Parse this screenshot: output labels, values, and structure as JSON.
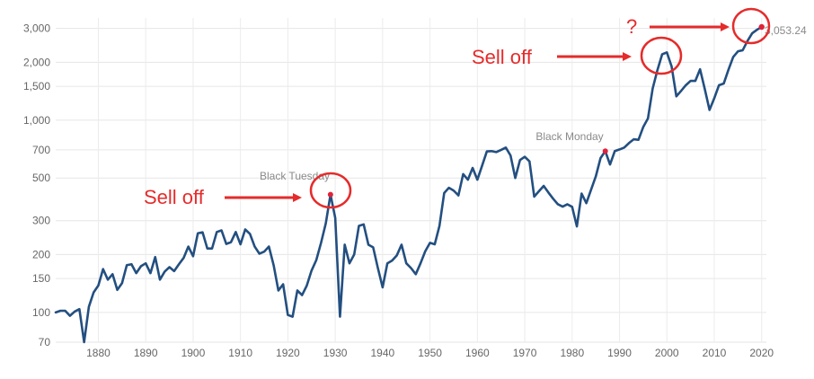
{
  "chart_data": {
    "type": "line",
    "y_scale": "log",
    "ylim": [
      70,
      3400
    ],
    "xlim": [
      1871,
      2021
    ],
    "grid": true,
    "x_ticks": [
      1880,
      1890,
      1900,
      1910,
      1920,
      1930,
      1940,
      1950,
      1960,
      1970,
      1980,
      1990,
      2000,
      2010,
      2020
    ],
    "y_ticks": [
      70,
      100,
      150,
      200,
      300,
      500,
      700,
      1000,
      1500,
      2000,
      3000
    ],
    "y_tick_labels": [
      "70",
      "100",
      "150",
      "200",
      "300",
      "500",
      "700",
      "1,000",
      "1,500",
      "2,000",
      "3,000"
    ],
    "line_color": "#234f80",
    "marker_color": "#e0233a",
    "series": [
      {
        "x": [
          1871,
          1872,
          1873,
          1874,
          1875,
          1876,
          1877,
          1878,
          1879,
          1880,
          1881,
          1882,
          1883,
          1884,
          1885,
          1886,
          1887,
          1888,
          1889,
          1890,
          1891,
          1892,
          1893,
          1894,
          1895,
          1896,
          1897,
          1898,
          1899,
          1900,
          1901,
          1902,
          1903,
          1904,
          1905,
          1906,
          1907,
          1908,
          1909,
          1910,
          1911,
          1912,
          1913,
          1914,
          1915,
          1916,
          1917,
          1918,
          1919,
          1920,
          1921,
          1922,
          1923,
          1924,
          1925,
          1926,
          1927,
          1928,
          1929,
          1930,
          1931,
          1932,
          1933,
          1934,
          1935,
          1936,
          1937,
          1938,
          1939,
          1940,
          1941,
          1942,
          1943,
          1944,
          1945,
          1946,
          1947,
          1948,
          1949,
          1950,
          1951,
          1952,
          1953,
          1954,
          1955,
          1956,
          1957,
          1958,
          1959,
          1960,
          1961,
          1962,
          1963,
          1964,
          1965,
          1966,
          1967,
          1968,
          1969,
          1970,
          1971,
          1972,
          1973,
          1974,
          1975,
          1976,
          1977,
          1978,
          1979,
          1980,
          1981,
          1982,
          1983,
          1984,
          1985,
          1986,
          1987,
          1988,
          1989,
          1990,
          1991,
          1992,
          1993,
          1994,
          1995,
          1996,
          1997,
          1998,
          1999,
          2000,
          2001,
          2002,
          2003,
          2004,
          2005,
          2006,
          2007,
          2008,
          2009,
          2010,
          2011,
          2012,
          2013,
          2014,
          2015,
          2016,
          2017,
          2018,
          2019,
          2020
        ],
        "values": [
          100,
          102,
          102,
          96,
          101,
          104,
          70,
          107,
          127,
          138,
          168,
          148,
          158,
          131,
          142,
          176,
          178,
          160,
          174,
          180,
          160,
          194,
          148,
          163,
          172,
          164,
          178,
          192,
          220,
          196,
          258,
          261,
          215,
          215,
          262,
          267,
          227,
          232,
          262,
          226,
          270,
          256,
          220,
          202,
          207,
          220,
          176,
          130,
          140,
          97,
          95,
          130,
          123,
          138,
          165,
          187,
          230,
          290,
          410,
          310,
          95,
          225,
          180,
          200,
          282,
          287,
          225,
          218,
          170,
          135,
          180,
          186,
          198,
          225,
          180,
          170,
          158,
          180,
          208,
          230,
          226,
          282,
          418,
          445,
          430,
          406,
          524,
          490,
          564,
          490,
          580,
          688,
          690,
          682,
          700,
          720,
          655,
          500,
          620,
          645,
          610,
          400,
          427,
          455,
          420,
          390,
          365,
          355,
          365,
          354,
          280,
          415,
          370,
          435,
          510,
          635,
          690,
          588,
          690,
          704,
          720,
          760,
          795,
          790,
          920,
          1020,
          1460,
          1820,
          2200,
          2250,
          1900,
          1330,
          1420,
          1520,
          1600,
          1600,
          1840,
          1450,
          1130,
          1300,
          1520,
          1550,
          1830,
          2130,
          2280,
          2310,
          2580,
          2830,
          2950,
          3053.24
        ]
      }
    ],
    "annotations": [
      {
        "label": "Black Tuesday",
        "x": 1929,
        "y": 410
      },
      {
        "label": "Black Monday",
        "x": 1987,
        "y": 690
      }
    ],
    "end_point": {
      "x": 2020,
      "y": 3053.24,
      "label": "3,053.24"
    },
    "callouts": [
      {
        "text": "Sell off",
        "target_year": 1929
      },
      {
        "text": "Sell off",
        "target_year": 2000
      },
      {
        "text": "?",
        "target_year": 2020
      }
    ]
  }
}
